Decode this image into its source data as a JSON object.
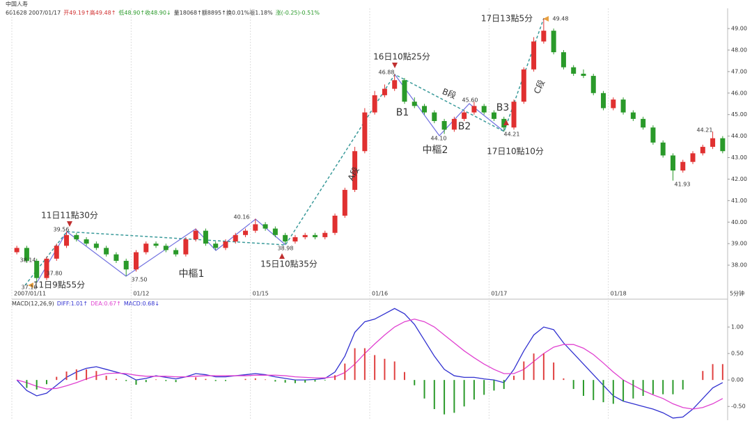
{
  "header": {
    "title": "中国人寿",
    "info": [
      {
        "text": "601628 2007/01/17",
        "color": "#333333"
      },
      {
        "text": "开49.19↑高49.48↑",
        "color": "#d03030"
      },
      {
        "text": "低48.90↑收48.90↓",
        "color": "#2a9a2a"
      },
      {
        "text": "量18068↑额8895↑换0.01%振1.18%",
        "color": "#333333"
      },
      {
        "text": "涨(-0.25)-0.51%",
        "color": "#2a9a2a"
      }
    ],
    "period": "5分钟"
  },
  "annotations": {
    "times": [
      {
        "text": "11日11點30分",
        "color": "#c03030"
      },
      {
        "text": "11日9點55分",
        "color": "#e8a040"
      },
      {
        "text": "15日10點35分",
        "color": "#c03030"
      },
      {
        "text": "16日10點25分",
        "color": "#c03030"
      },
      {
        "text": "17日10點10分",
        "color": "#c03030"
      },
      {
        "text": "17日13點5分",
        "color": "#e8a040"
      }
    ],
    "points": [
      {
        "text": "B1",
        "color": "#d02020"
      },
      {
        "text": "B2",
        "color": "#d02020"
      },
      {
        "text": "B3",
        "color": "#d02020"
      },
      {
        "text": "中樞1",
        "color": "#3030c0"
      },
      {
        "text": "中樞2",
        "color": "#3030c0"
      }
    ],
    "segments": [
      {
        "text": "A段",
        "color": "#3a9a9a"
      },
      {
        "text": "B段",
        "color": "#3a9a9a"
      },
      {
        "text": "C段",
        "color": "#3a9a9a"
      }
    ],
    "prices": [
      39.56,
      38.14,
      {
        "value": 37.8,
        "label": "37.80"
      },
      {
        "value": 37.5,
        "label": "37.50"
      },
      {
        "value": 37.1,
        "label": "37.10"
      },
      40.16,
      38.98,
      46.88,
      {
        "value": 44.1,
        "label": "44.10"
      },
      {
        "value": 45.6,
        "label": "45.60"
      },
      44.21,
      49.48,
      44.21,
      41.93
    ]
  },
  "chart_data": [
    {
      "type": "candlestick",
      "up_color": "#e03030",
      "down_color": "#2a9a2a",
      "xlim": [
        0,
        72
      ],
      "xticks": [
        {
          "value": 0,
          "label": "2007/01/11"
        },
        {
          "value": 12,
          "label": "01/12"
        },
        {
          "value": 24,
          "label": "01/15"
        },
        {
          "value": 36,
          "label": "01/16"
        },
        {
          "value": 48,
          "label": "01/17"
        },
        {
          "value": 60,
          "label": "01/18"
        }
      ],
      "ylim": [
        37.0,
        49.94
      ],
      "yticks": [
        {
          "value": 38,
          "label": "38.00"
        },
        {
          "value": 39,
          "label": "39.00"
        },
        {
          "value": 40,
          "label": "40.00"
        },
        {
          "value": 41,
          "label": "41.00"
        },
        {
          "value": 42,
          "label": "42.00"
        },
        {
          "value": 43,
          "label": "43.00"
        },
        {
          "value": 44,
          "label": "44.00"
        },
        {
          "value": 45,
          "label": "45.00"
        },
        {
          "value": 46,
          "label": "46.00"
        },
        {
          "value": 47,
          "label": "47.00"
        },
        {
          "value": 48,
          "label": "48.00"
        },
        {
          "value": 49,
          "label": "49.00"
        }
      ],
      "grid": true,
      "open": [
        38.6,
        38.8,
        38.2,
        37.4,
        38.3,
        38.9,
        39.4,
        39.2,
        39.0,
        38.8,
        38.5,
        38.2,
        37.8,
        38.6,
        39.0,
        38.9,
        38.7,
        38.5,
        39.2,
        39.6,
        39.0,
        38.8,
        39.1,
        39.4,
        39.6,
        39.9,
        39.7,
        39.4,
        39.1,
        39.3,
        39.4,
        39.3,
        39.5,
        40.3,
        41.5,
        43.3,
        45.1,
        45.9,
        46.2,
        46.6,
        45.6,
        45.4,
        45.1,
        44.7,
        44.3,
        44.8,
        45.1,
        45.4,
        45.1,
        44.8,
        44.4,
        45.6,
        47.1,
        48.4,
        48.9,
        47.9,
        47.2,
        46.9,
        46.8,
        46.0,
        45.3,
        45.7,
        45.1,
        44.8,
        44.4,
        43.7,
        43.1,
        42.4,
        42.8,
        43.2,
        43.5,
        43.9
      ],
      "close": [
        38.8,
        38.2,
        37.4,
        38.3,
        38.9,
        39.4,
        39.2,
        39.0,
        38.8,
        38.5,
        38.2,
        37.8,
        38.6,
        39.0,
        38.9,
        38.7,
        38.5,
        39.2,
        39.6,
        39.0,
        38.8,
        39.1,
        39.4,
        39.6,
        39.9,
        39.7,
        39.4,
        39.1,
        39.3,
        39.4,
        39.3,
        39.5,
        40.3,
        41.5,
        43.3,
        45.1,
        45.9,
        46.2,
        46.6,
        45.6,
        45.4,
        45.1,
        44.7,
        44.3,
        44.8,
        45.1,
        45.4,
        45.1,
        44.8,
        44.4,
        45.6,
        47.1,
        48.4,
        48.9,
        47.9,
        47.2,
        46.9,
        46.8,
        46.0,
        45.3,
        45.7,
        45.1,
        44.8,
        44.4,
        43.7,
        43.1,
        42.4,
        42.8,
        43.2,
        43.5,
        43.9,
        43.3
      ],
      "high": [
        38.9,
        38.9,
        38.3,
        38.4,
        39.0,
        39.56,
        39.5,
        39.3,
        39.1,
        38.9,
        38.6,
        38.3,
        38.7,
        39.1,
        39.1,
        39.0,
        38.8,
        39.3,
        39.7,
        39.7,
        39.1,
        39.2,
        39.5,
        39.7,
        40.16,
        40.0,
        39.8,
        39.5,
        39.4,
        39.5,
        39.5,
        39.6,
        40.4,
        41.6,
        43.5,
        45.3,
        46.1,
        46.4,
        46.88,
        46.7,
        45.8,
        45.5,
        45.2,
        44.8,
        44.9,
        45.2,
        45.6,
        45.5,
        45.2,
        44.9,
        45.7,
        47.2,
        48.6,
        49.48,
        49.0,
        48.0,
        47.3,
        47.1,
        46.9,
        46.1,
        45.8,
        45.8,
        45.2,
        44.9,
        44.5,
        43.8,
        43.2,
        42.9,
        43.3,
        43.6,
        44.21,
        44.0
      ],
      "low": [
        38.5,
        38.1,
        37.2,
        37.3,
        38.2,
        38.8,
        39.1,
        38.9,
        38.7,
        38.4,
        38.1,
        37.5,
        37.7,
        38.5,
        38.8,
        38.6,
        38.4,
        38.4,
        39.1,
        38.9,
        38.7,
        38.7,
        39.0,
        39.3,
        39.5,
        39.6,
        39.3,
        38.98,
        39.0,
        39.2,
        39.2,
        39.2,
        39.4,
        40.2,
        41.4,
        43.2,
        45.0,
        45.8,
        46.1,
        45.5,
        45.3,
        45.0,
        44.6,
        44.1,
        44.2,
        44.7,
        45.0,
        45.0,
        44.7,
        44.21,
        44.3,
        45.5,
        47.0,
        48.3,
        47.8,
        47.1,
        46.8,
        46.7,
        45.9,
        45.2,
        45.2,
        45.0,
        44.7,
        44.3,
        43.6,
        43.0,
        41.93,
        42.3,
        42.7,
        43.1,
        43.4,
        43.2
      ]
    },
    {
      "type": "line",
      "title": "MACD(12,26,9)",
      "xlim": [
        0,
        72
      ],
      "ylim": [
        -0.76,
        1.5
      ],
      "yticks": [
        {
          "value": -0.5,
          "label": "-0.50"
        },
        {
          "value": 0,
          "label": "0.00"
        },
        {
          "value": 0.5,
          "label": "0.50"
        },
        {
          "value": 1,
          "label": "1.00"
        }
      ],
      "series": [
        {
          "name": "DIFF:1.01↑",
          "color": "#3030d0",
          "values": [
            0.0,
            -0.2,
            -0.3,
            -0.25,
            -0.1,
            0.05,
            0.15,
            0.22,
            0.25,
            0.2,
            0.15,
            0.1,
            0.0,
            0.03,
            0.08,
            0.05,
            0.02,
            0.06,
            0.12,
            0.1,
            0.06,
            0.06,
            0.08,
            0.1,
            0.12,
            0.1,
            0.06,
            0.03,
            0.0,
            0.0,
            0.01,
            0.03,
            0.15,
            0.45,
            0.9,
            1.1,
            1.15,
            1.25,
            1.35,
            1.25,
            1.05,
            0.75,
            0.45,
            0.2,
            0.08,
            0.05,
            0.05,
            0.02,
            0.0,
            -0.05,
            0.2,
            0.55,
            0.85,
            1.0,
            0.95,
            0.7,
            0.5,
            0.3,
            0.1,
            -0.1,
            -0.3,
            -0.4,
            -0.45,
            -0.5,
            -0.55,
            -0.62,
            -0.72,
            -0.7,
            -0.55,
            -0.35,
            -0.15,
            -0.05
          ]
        },
        {
          "name": "DEA:0.67↑",
          "color": "#e040d0",
          "values": [
            0.0,
            -0.05,
            -0.12,
            -0.17,
            -0.16,
            -0.11,
            -0.05,
            0.02,
            0.08,
            0.12,
            0.13,
            0.12,
            0.09,
            0.07,
            0.07,
            0.07,
            0.06,
            0.06,
            0.07,
            0.08,
            0.08,
            0.08,
            0.08,
            0.08,
            0.09,
            0.09,
            0.09,
            0.08,
            0.06,
            0.05,
            0.04,
            0.04,
            0.06,
            0.14,
            0.3,
            0.5,
            0.68,
            0.85,
            1.0,
            1.1,
            1.15,
            1.1,
            1.0,
            0.85,
            0.7,
            0.55,
            0.42,
            0.3,
            0.2,
            0.12,
            0.12,
            0.2,
            0.35,
            0.5,
            0.62,
            0.67,
            0.67,
            0.6,
            0.48,
            0.32,
            0.15,
            0.0,
            -0.1,
            -0.2,
            -0.28,
            -0.35,
            -0.45,
            -0.52,
            -0.55,
            -0.52,
            -0.45,
            -0.35
          ]
        },
        {
          "name": "MACD:0.68↓",
          "type": "bar",
          "color": "#e04040",
          "negative_color": "#2a9a2a",
          "label_color": "#3030d0",
          "values": [
            0,
            -0.15,
            -0.18,
            -0.08,
            0.06,
            0.16,
            0.2,
            0.2,
            0.17,
            0.08,
            0.02,
            -0.02,
            -0.09,
            -0.04,
            0.01,
            -0.02,
            -0.04,
            0,
            0.05,
            0.02,
            -0.02,
            -0.02,
            0,
            0.02,
            0.03,
            0.01,
            -0.03,
            -0.05,
            -0.06,
            -0.05,
            -0.03,
            -0.01,
            0.09,
            0.31,
            0.6,
            0.6,
            0.47,
            0.4,
            0.35,
            0.15,
            -0.1,
            -0.35,
            -0.55,
            -0.65,
            -0.62,
            -0.5,
            -0.37,
            -0.28,
            -0.2,
            -0.17,
            0.08,
            0.35,
            0.5,
            0.5,
            0.33,
            0.03,
            -0.17,
            -0.3,
            -0.38,
            -0.42,
            -0.45,
            -0.4,
            -0.35,
            -0.3,
            -0.27,
            -0.27,
            -0.27,
            -0.18,
            0.0,
            0.17,
            0.3,
            0.3
          ]
        }
      ]
    }
  ]
}
